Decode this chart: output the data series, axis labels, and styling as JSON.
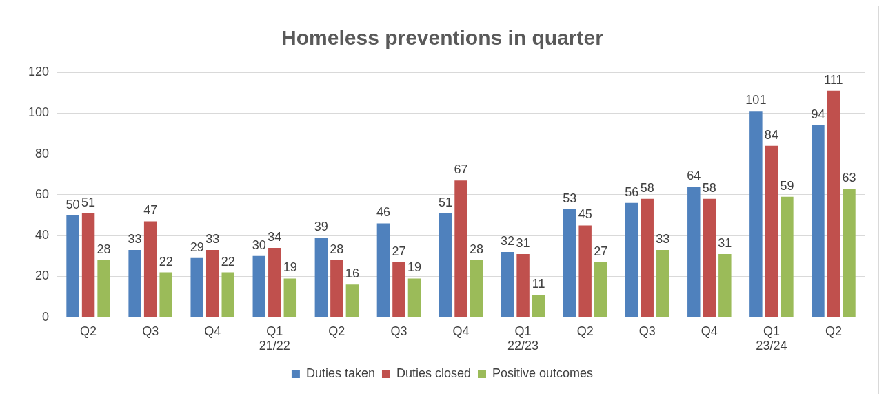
{
  "chart_data": {
    "type": "bar",
    "title": "Homeless preventions in quarter",
    "categories": [
      "Q2",
      "Q3",
      "Q4",
      "Q1\n21/22",
      "Q2",
      "Q3",
      "Q4",
      "Q1\n22/23",
      "Q2",
      "Q3",
      "Q4",
      "Q1\n23/24",
      "Q2"
    ],
    "series": [
      {
        "name": "Duties taken",
        "color": "#4f81bd",
        "values": [
          50,
          33,
          29,
          30,
          39,
          46,
          51,
          32,
          53,
          56,
          64,
          101,
          94
        ]
      },
      {
        "name": "Duties closed",
        "color": "#c0504d",
        "values": [
          51,
          47,
          33,
          34,
          28,
          27,
          67,
          31,
          45,
          58,
          58,
          84,
          111
        ]
      },
      {
        "name": "Positive outcomes",
        "color": "#9bbb59",
        "values": [
          28,
          22,
          22,
          19,
          16,
          19,
          28,
          11,
          27,
          33,
          31,
          59,
          63
        ]
      }
    ],
    "ylim": [
      0,
      120
    ],
    "yticks": [
      0,
      20,
      40,
      60,
      80,
      100,
      120
    ],
    "grid": "y",
    "legend": "bottom",
    "data_labels": true
  }
}
